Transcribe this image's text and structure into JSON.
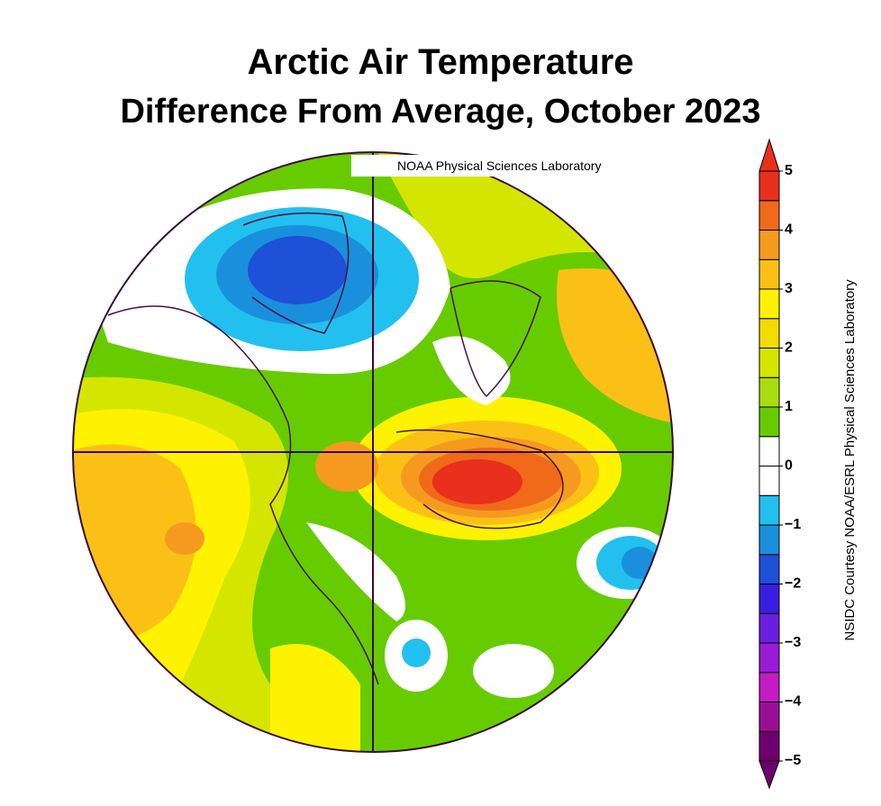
{
  "header": {
    "title": "Arctic Air Temperature",
    "subtitle": "Difference From Average, October 2023"
  },
  "map": {
    "source_label": "NOAA Physical Sciences Laboratory"
  },
  "colorbar": {
    "ticks": [
      {
        "value": -5,
        "label": "−5"
      },
      {
        "value": -4,
        "label": "−4"
      },
      {
        "value": -3,
        "label": "−3"
      },
      {
        "value": -2,
        "label": "−2"
      },
      {
        "value": -1,
        "label": "−1"
      },
      0,
      1,
      2,
      3,
      4,
      5
    ],
    "colors": [
      "#6e006e",
      "#9a0e96",
      "#c41cc4",
      "#9a1ad8",
      "#6a1ee0",
      "#3a1ee0",
      "#1e50d8",
      "#1a90dd",
      "#22c0ee",
      "#ffffff",
      "#ffffff",
      "#66cc00",
      "#a8dc10",
      "#d4e600",
      "#f2dc00",
      "#fff200",
      "#fbc016",
      "#f69a1f",
      "#f06a1a",
      "#e8301c"
    ],
    "credit": "NSIDC Courtesy NOAA/ESRL Physical Sciences Laboratory"
  }
}
